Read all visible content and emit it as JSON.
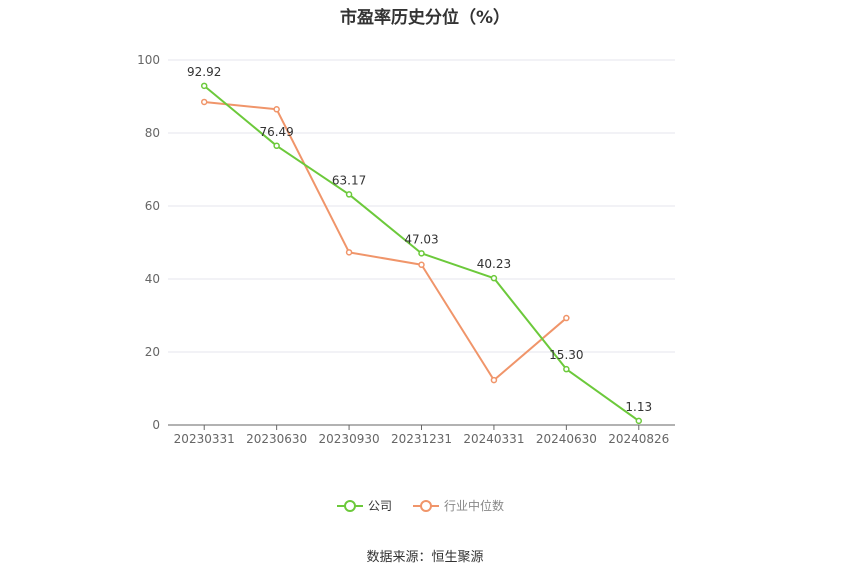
{
  "chart_data": {
    "type": "line",
    "title": "市盈率历史分位（%）",
    "categories": [
      "20230331",
      "20230630",
      "20230930",
      "20231231",
      "20240331",
      "20240630",
      "20240826"
    ],
    "ylim": [
      0,
      100
    ],
    "yticks": [
      0,
      20,
      40,
      60,
      80,
      100
    ],
    "grid": true,
    "legend_position": "bottom",
    "series": [
      {
        "name": "公司",
        "color": "#6cc93b",
        "values": [
          92.92,
          76.49,
          63.17,
          47.03,
          40.23,
          15.3,
          1.13
        ],
        "labels": [
          "92.92",
          "76.49",
          "63.17",
          "47.03",
          "40.23",
          "15.30",
          "1.13"
        ]
      },
      {
        "name": "行业中位数",
        "color": "#f0956a",
        "values": [
          88.5,
          86.5,
          47.3,
          43.9,
          12.3,
          29.3,
          null
        ]
      }
    ]
  },
  "source": "数据来源：恒生聚源"
}
